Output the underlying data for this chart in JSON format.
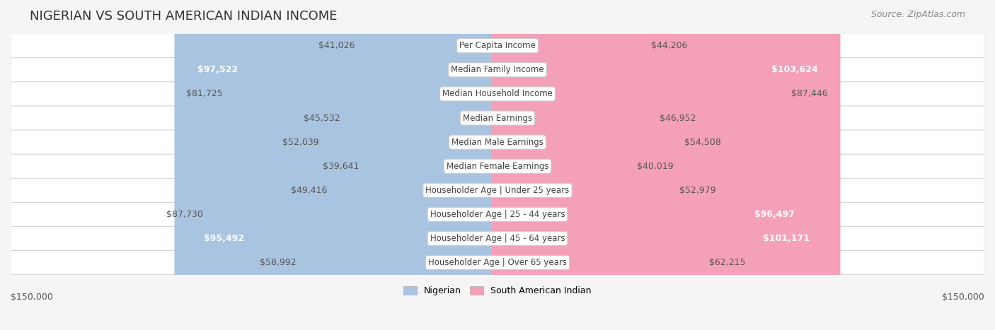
{
  "title": "NIGERIAN VS SOUTH AMERICAN INDIAN INCOME",
  "source": "Source: ZipAtlas.com",
  "categories": [
    "Per Capita Income",
    "Median Family Income",
    "Median Household Income",
    "Median Earnings",
    "Median Male Earnings",
    "Median Female Earnings",
    "Householder Age | Under 25 years",
    "Householder Age | 25 - 44 years",
    "Householder Age | 45 - 64 years",
    "Householder Age | Over 65 years"
  ],
  "nigerian": [
    41026,
    97522,
    81725,
    45532,
    52039,
    39641,
    49416,
    87730,
    95492,
    58992
  ],
  "south_american_indian": [
    44206,
    103624,
    87446,
    46952,
    54508,
    40019,
    52979,
    96497,
    101171,
    62215
  ],
  "max_value": 150000,
  "nigerian_color_light": "#a8c4e0",
  "nigerian_color_dark": "#6fa8d4",
  "south_american_color_light": "#f4a0b8",
  "south_american_color_dark": "#f06090",
  "nigerian_label_dark": [
    false,
    true,
    false,
    false,
    false,
    false,
    false,
    false,
    true,
    false
  ],
  "south_american_label_dark": [
    false,
    true,
    false,
    false,
    false,
    false,
    false,
    true,
    true,
    false
  ],
  "bg_color": "#f5f5f5",
  "row_bg_color": "#ffffff",
  "title_color": "#333333",
  "label_font_size": 9,
  "title_font_size": 13,
  "source_font_size": 9
}
